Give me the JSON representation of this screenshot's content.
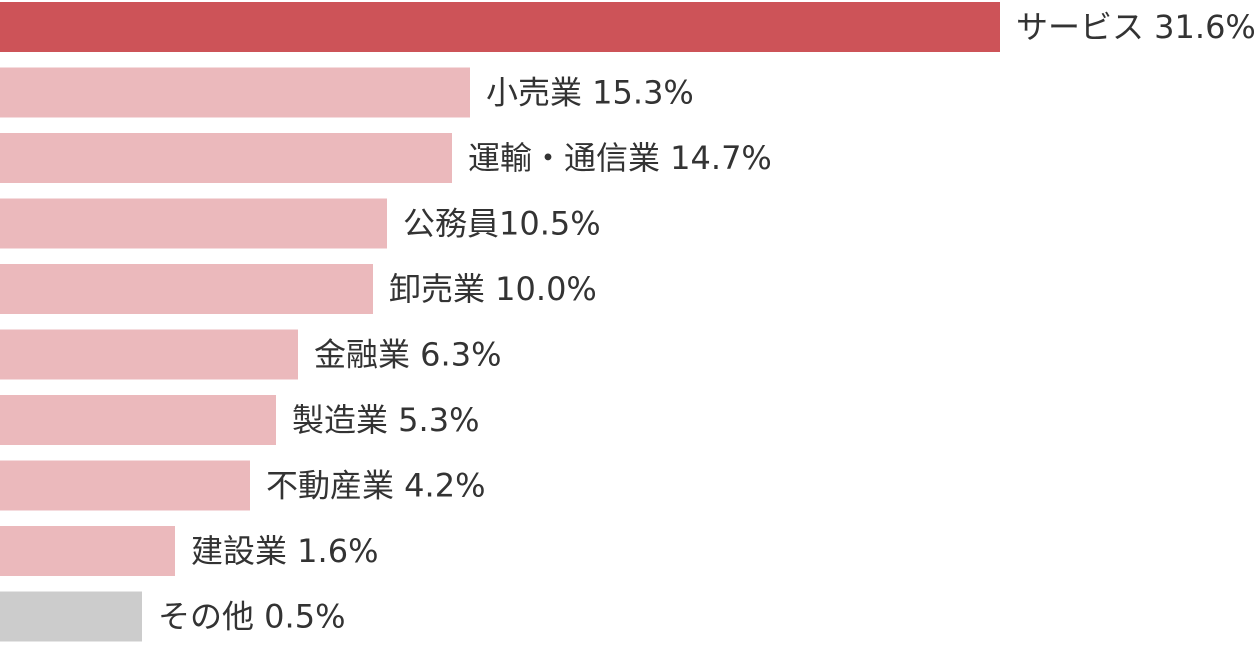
{
  "chart_data": {
    "type": "bar",
    "orientation": "horizontal",
    "title": "",
    "xlabel": "",
    "ylabel": "",
    "grid": false,
    "legend": "none",
    "bars": [
      {
        "category": "サービス",
        "value": 31.6,
        "label": "サービス 31.6%",
        "color": "#cd5358"
      },
      {
        "category": "小売業",
        "value": 15.3,
        "label": "小売業 15.3%",
        "color": "#ebb9bc"
      },
      {
        "category": "運輸・通信業",
        "value": 14.7,
        "label": "運輸・通信業 14.7%",
        "color": "#ebb9bc"
      },
      {
        "category": "公務員",
        "value": 10.5,
        "label": "公務員10.5%",
        "color": "#ebb9bc"
      },
      {
        "category": "卸売業",
        "value": 10.0,
        "label": "卸売業 10.0%",
        "color": "#ebb9bc"
      },
      {
        "category": "金融業",
        "value": 6.3,
        "label": "金融業 6.3%",
        "color": "#ebb9bc"
      },
      {
        "category": "製造業",
        "value": 5.3,
        "label": "製造業 5.3%",
        "color": "#ebb9bc"
      },
      {
        "category": "不動産業",
        "value": 4.2,
        "label": "不動産業 4.2%",
        "color": "#ebb9bc"
      },
      {
        "category": "建設業",
        "value": 1.6,
        "label": "建設業 1.6%",
        "color": "#ebb9bc"
      },
      {
        "category": "その他",
        "value": 0.5,
        "label": "その他 0.5%",
        "color": "#cccccc"
      }
    ]
  }
}
